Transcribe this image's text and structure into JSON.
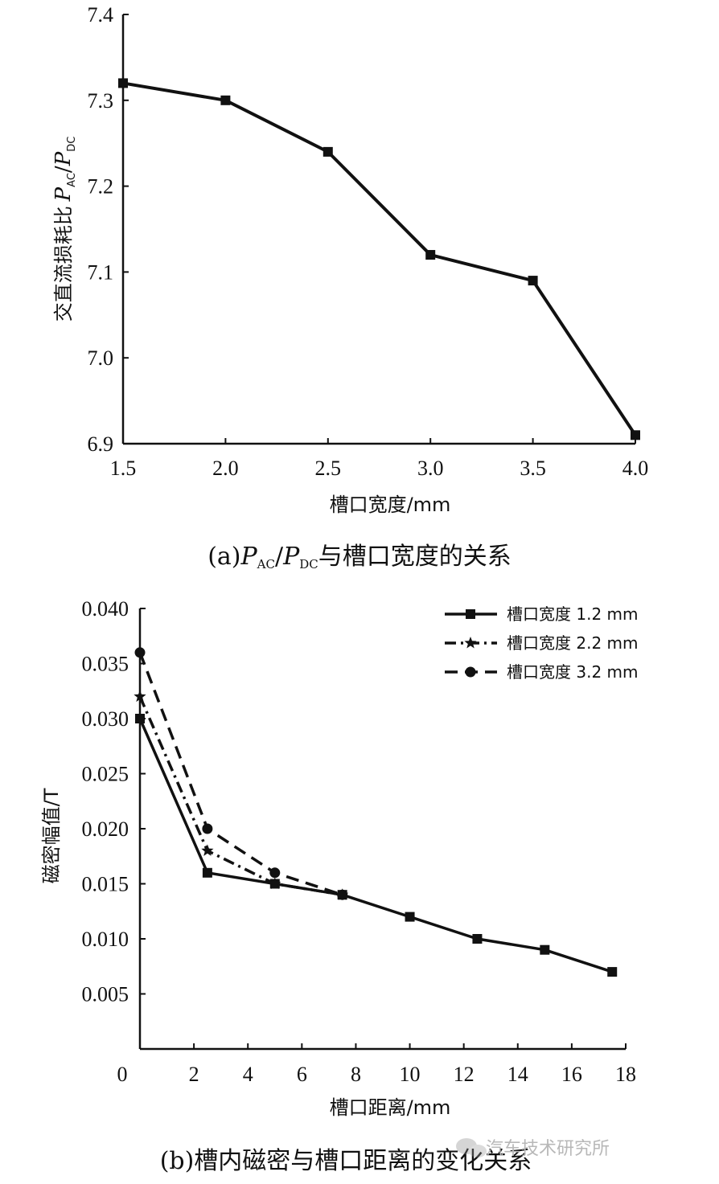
{
  "chart_data": [
    {
      "type": "line",
      "xlabel": "槽口宽度/mm",
      "ylabel": {
        "main": "交直流损耗比",
        "p1": "P",
        "s1": "AC",
        "slash": "/",
        "p2": "P",
        "s2": "DC"
      },
      "xlim": [
        1.5,
        4.0
      ],
      "ylim": [
        6.9,
        7.4
      ],
      "x_ticks": [
        "1.5",
        "2.0",
        "2.5",
        "3.0",
        "3.5",
        "4.0"
      ],
      "y_ticks": [
        "6.9",
        "7.0",
        "7.1",
        "7.2",
        "7.3",
        "7.4"
      ],
      "grid": false,
      "caption": {
        "pre": "(a)",
        "p1": "P",
        "s1": "AC",
        "slash": "/",
        "p2": "P",
        "s2": "DC",
        "post": "与槽口宽度的关系"
      },
      "series": [
        {
          "x": [
            1.5,
            2.0,
            2.5,
            3.0,
            3.5,
            4.0
          ],
          "y": [
            7.32,
            7.3,
            7.24,
            7.12,
            7.09,
            6.91
          ]
        }
      ]
    },
    {
      "type": "line",
      "xlabel": "槽口距离/mm",
      "ylabel": "磁密幅值/T",
      "xlim": [
        0,
        18
      ],
      "ylim": [
        0,
        0.04
      ],
      "x_ticks": [
        "0",
        "2",
        "4",
        "6",
        "8",
        "10",
        "12",
        "14",
        "16",
        "18"
      ],
      "y_ticks": [
        "0.005",
        "0.010",
        "0.015",
        "0.020",
        "0.025",
        "0.030",
        "0.035",
        "0.040"
      ],
      "grid": false,
      "legend_position": "top-right",
      "caption": "(b)槽内磁密与槽口距离的变化关系",
      "series": [
        {
          "name": "槽口宽度 1.2 mm",
          "marker": "square",
          "dash": "solid",
          "x": [
            0,
            2.5,
            5,
            7.5,
            10,
            12.5,
            15,
            17.5
          ],
          "y": [
            0.03,
            0.016,
            0.015,
            0.014,
            0.012,
            0.01,
            0.009,
            0.007
          ]
        },
        {
          "name": "槽口宽度 2.2 mm",
          "marker": "star",
          "dash": "dashdot",
          "x": [
            0,
            2.5,
            5,
            7.5
          ],
          "y": [
            0.032,
            0.018,
            0.015,
            0.014
          ]
        },
        {
          "name": "槽口宽度 3.2 mm",
          "marker": "circle",
          "dash": "dashed",
          "x": [
            0,
            2.5,
            5,
            7.5
          ],
          "y": [
            0.036,
            0.02,
            0.016,
            0.014
          ]
        }
      ]
    }
  ],
  "watermark": "汽车技术研究所",
  "watermark_icon": "wechat-icon"
}
